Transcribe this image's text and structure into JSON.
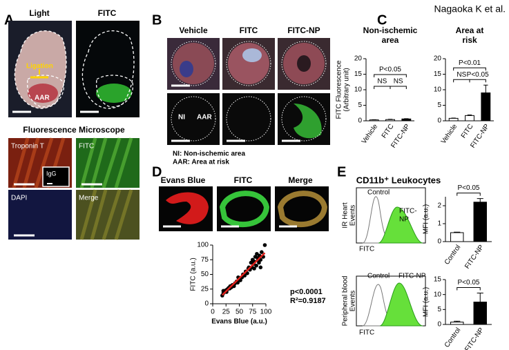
{
  "header": "Nagaoka K et al.",
  "panel_labels": [
    "A",
    "B",
    "C",
    "D",
    "E"
  ],
  "panel_a": {
    "top_labels": [
      "Light",
      "FITC"
    ],
    "ligation": "Ligation",
    "aar": "AAR",
    "microscope_title": "Fluorescence Microscope",
    "micro_labels": [
      "Troponin T",
      "FITC",
      "DAPI",
      "Merge"
    ],
    "inset": "IgG"
  },
  "panel_b": {
    "columns": [
      "Vehicle",
      "FITC",
      "FITC-NP"
    ],
    "region_labels": [
      "NI",
      "AAR"
    ],
    "legend": [
      "NI: Non-ischemic area",
      "AAR: Area at risk"
    ]
  },
  "panel_d": {
    "image_labels": [
      "Evans Blue",
      "FITC",
      "Merge"
    ]
  },
  "panel_e": {
    "title": "CD11b⁺ Leukocytes",
    "histograms": [
      {
        "y_label": [
          "IR Heart",
          "Events"
        ],
        "control": "Control",
        "sample": [
          "FITC-",
          "NP"
        ],
        "x_label": "FITC"
      },
      {
        "y_label": [
          "Peripheral blood",
          "Events"
        ],
        "control": "Control",
        "sample": [
          "FITC-NP"
        ],
        "x_label": "FITC"
      }
    ]
  },
  "chart_data": [
    {
      "type": "bar",
      "title": [
        "Non-ischemic",
        "area"
      ],
      "y_label": [
        "FITC Fluorescence",
        "(Arbitrary unit)"
      ],
      "categories": [
        "Vehicle",
        "FITC",
        "FITC-NP"
      ],
      "series": [
        {
          "values": [
            0.3,
            0.4,
            0.6
          ],
          "errors": [
            0.05,
            0.1,
            0.1
          ],
          "colors": [
            "#ffffff",
            "#ffffff",
            "#000000"
          ]
        }
      ],
      "ylim": [
        0,
        20
      ],
      "yticks": [
        0,
        5,
        10,
        15,
        20
      ],
      "annotations": [
        "P<0.05",
        "NS",
        "NS"
      ]
    },
    {
      "type": "bar",
      "title": [
        "Area at",
        "risk"
      ],
      "categories": [
        "Vehicle",
        "FITC",
        "FITC-NP"
      ],
      "series": [
        {
          "values": [
            0.8,
            1.7,
            9.0
          ],
          "errors": [
            0.1,
            0.2,
            2.5
          ],
          "colors": [
            "#ffffff",
            "#ffffff",
            "#000000"
          ]
        }
      ],
      "ylim": [
        0,
        20
      ],
      "yticks": [
        0,
        5,
        10,
        15,
        20
      ],
      "annotations": [
        "P<0.01",
        "NS",
        "P<0.05"
      ]
    },
    {
      "type": "scatter",
      "x_label": "Evans Blue (a.u.)",
      "y_label": [
        "FITC (a.u.)"
      ],
      "x": [
        18,
        20,
        22,
        23,
        25,
        26,
        28,
        30,
        32,
        33,
        35,
        37,
        40,
        42,
        45,
        47,
        50,
        52,
        55,
        57,
        60,
        62,
        65,
        67,
        70,
        72,
        74,
        75,
        77,
        78,
        80,
        82,
        83,
        85,
        87,
        88,
        90,
        92,
        95,
        98,
        20,
        27,
        35,
        48,
        58,
        68,
        78,
        85,
        90
      ],
      "y": [
        14,
        18,
        20,
        22,
        23,
        20,
        25,
        27,
        26,
        30,
        28,
        32,
        30,
        35,
        38,
        36,
        42,
        40,
        45,
        50,
        48,
        55,
        52,
        60,
        58,
        70,
        62,
        75,
        68,
        72,
        80,
        65,
        85,
        78,
        70,
        82,
        75,
        88,
        80,
        100,
        22,
        24,
        30,
        45,
        50,
        62,
        60,
        74,
        62
      ],
      "color": "#000000",
      "fit_color": "#e0201b",
      "xlim": [
        0,
        100
      ],
      "xticks": [
        0,
        25,
        50,
        75,
        100
      ],
      "ylim": [
        0,
        100
      ],
      "yticks": [
        0,
        25,
        50,
        75,
        100
      ],
      "annotations": [
        "p<0.0001",
        "R²=0.9187"
      ]
    },
    {
      "type": "bar",
      "y_label": [
        "MFI (a.u.)"
      ],
      "categories": [
        "Control",
        "FITC-NP"
      ],
      "series": [
        {
          "values": [
            0.5,
            2.2
          ],
          "errors": [
            0.03,
            0.2
          ],
          "colors": [
            "#ffffff",
            "#000000"
          ]
        }
      ],
      "ylim": [
        0,
        2.5
      ],
      "yticks": [
        0,
        1,
        2
      ],
      "annotations": [
        "P<0.05"
      ]
    },
    {
      "type": "bar",
      "y_label": [
        "MFI (a.u.)"
      ],
      "categories": [
        "Control",
        "FITC-NP"
      ],
      "series": [
        {
          "values": [
            0.8,
            7.5
          ],
          "errors": [
            0.3,
            3.0
          ],
          "colors": [
            "#ffffff",
            "#000000"
          ]
        }
      ],
      "ylim": [
        0,
        15
      ],
      "yticks": [
        0,
        5,
        10,
        15
      ],
      "annotations": [
        "P<0.05"
      ]
    }
  ]
}
